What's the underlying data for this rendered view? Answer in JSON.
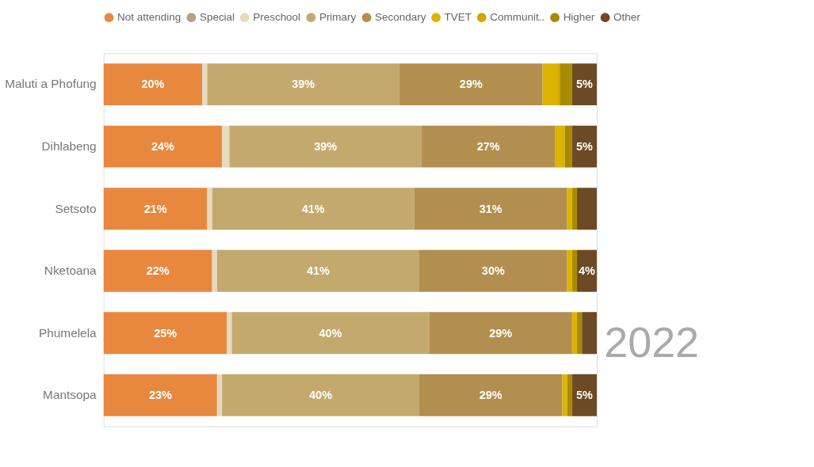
{
  "chart_data": {
    "type": "bar",
    "orientation": "horizontal",
    "stacked": true,
    "legend": "top",
    "grid": false,
    "categories": [
      "Maluti a Phofung",
      "Dihlabeng",
      "Setsoto",
      "Nketoana",
      "Phumelela",
      "Mantsopa"
    ],
    "series": [
      {
        "name": "Not attending",
        "color": "#e8883f",
        "values": [
          20,
          24,
          21,
          22,
          25,
          23
        ],
        "value_labels": [
          "20%",
          "24%",
          "21%",
          "22%",
          "25%",
          "23%"
        ]
      },
      {
        "name": "Special",
        "color": "#b5a07f",
        "values": [
          0,
          0,
          0,
          0,
          0,
          0
        ]
      },
      {
        "name": "Preschool",
        "color": "#e6dac0",
        "values": [
          1,
          1.5,
          1,
          1,
          1,
          1
        ]
      },
      {
        "name": "Primary",
        "color": "#c4a96f",
        "values": [
          39,
          39,
          41,
          41,
          40,
          40
        ],
        "value_labels": [
          "39%",
          "39%",
          "41%",
          "41%",
          "40%",
          "40%"
        ]
      },
      {
        "name": "Secondary",
        "color": "#b28f4f",
        "values": [
          29,
          27,
          31,
          30,
          29,
          29
        ],
        "value_labels": [
          "29%",
          "27%",
          "31%",
          "30%",
          "29%",
          "29%"
        ]
      },
      {
        "name": "TVET",
        "color": "#dcb400",
        "values": [
          3,
          2,
          1,
          1,
          1,
          1
        ]
      },
      {
        "name": "Communit..",
        "color": "#d2a600",
        "values": [
          0.5,
          0,
          0,
          0,
          0,
          0
        ]
      },
      {
        "name": "Higher",
        "color": "#a88a00",
        "values": [
          2.5,
          1.5,
          1,
          1,
          1,
          1
        ]
      },
      {
        "name": "Other",
        "color": "#6b4a25",
        "values": [
          5,
          5,
          4,
          4,
          3,
          5
        ],
        "value_labels": [
          "5%",
          "5%",
          null,
          "4%",
          null,
          "5%"
        ]
      }
    ],
    "annotations": [
      "2022"
    ]
  }
}
